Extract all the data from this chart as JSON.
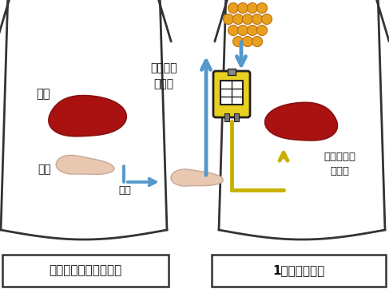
{
  "bg_color": "#ffffff",
  "label_donor": "ドナー（臓器提供者）",
  "label_patient": "1型糖尿病患者",
  "label_liver_left": "肝臓",
  "label_pancreas": "膵臓",
  "label_extract": "摘出",
  "label_separate": "膵島のみ\nを分離",
  "label_inject": "点滴で肝臓\nに注入",
  "liver_color": "#aa1111",
  "liver_edge": "#881111",
  "pancreas_color": "#e8c8b0",
  "pancreas_edge": "#c8a898",
  "islet_color": "#e8a020",
  "islet_edge": "#c07010",
  "arrow_blue": "#5599cc",
  "iv_bag_yellow": "#e8d020",
  "iv_bag_edge": "#222222",
  "iv_tube_color": "#c8b000",
  "body_bg": "#ffffff",
  "body_line": "#333333",
  "text_color": "#111111",
  "box_edge": "#333333"
}
